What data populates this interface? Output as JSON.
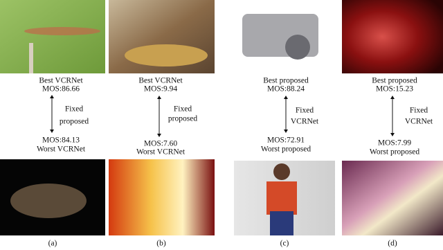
{
  "panels": [
    {
      "top_label": "Best VCRNet",
      "top_mos": "MOS:86.66",
      "fixed_lines": [
        "Fixed",
        "proposed"
      ],
      "bottom_mos": "MOS:84.13",
      "bottom_label": "Worst VCRNet",
      "caption": "(a)"
    },
    {
      "top_label": "Best VCRNet",
      "top_mos": "MOS:9.94",
      "fixed_lines": [
        "Fixed",
        "proposed"
      ],
      "bottom_mos": "MOS:7.60",
      "bottom_label": "Worst VCRNet",
      "caption": "(b)"
    },
    {
      "top_label": "Best proposed",
      "top_mos": "MOS:88.24",
      "fixed_lines": [
        "Fixed",
        "VCRNet"
      ],
      "bottom_mos": "MOS:72.91",
      "bottom_label": "Worst proposed",
      "caption": "(c)"
    },
    {
      "top_label": "Best proposed",
      "top_mos": "MOS:15.23",
      "fixed_lines": [
        "Fixed",
        "VCRNet"
      ],
      "bottom_mos": "MOS:7.99",
      "bottom_label": "Worst proposed",
      "caption": "(d)"
    }
  ]
}
